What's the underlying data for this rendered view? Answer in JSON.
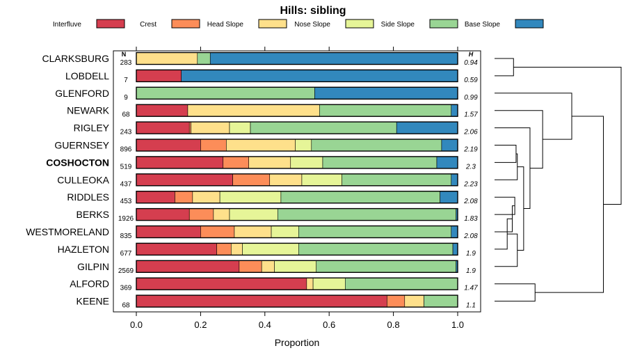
{
  "chart_data": {
    "type": "stacked-bar",
    "title": "Hills: sibling",
    "xlabel": "Proportion",
    "ylabel": "",
    "xlim": [
      0,
      1
    ],
    "x_ticks": [
      "0.0",
      "0.2",
      "0.4",
      "0.6",
      "0.8",
      "1.0"
    ],
    "n_header": "N",
    "h_header": "H",
    "legend": [
      {
        "name": "Interfluve",
        "color": "#D53E4F"
      },
      {
        "name": "Crest",
        "color": "#FC8D59"
      },
      {
        "name": "Head Slope",
        "color": "#FEE08B"
      },
      {
        "name": "Nose Slope",
        "color": "#E6F598"
      },
      {
        "name": "Side Slope",
        "color": "#99D594"
      },
      {
        "name": "Base Slope",
        "color": "#3288BD"
      }
    ],
    "highlight": "COSHOCTON",
    "rows": [
      {
        "name": "CLARKSBURG",
        "n": "283",
        "h": "0.94",
        "values": [
          0,
          0,
          0.19,
          0,
          0.04,
          0.77
        ]
      },
      {
        "name": "LOBDELL",
        "n": "7",
        "h": "0.59",
        "values": [
          0.14,
          0,
          0,
          0,
          0,
          0.86
        ]
      },
      {
        "name": "GLENFORD",
        "n": "9",
        "h": "0.99",
        "values": [
          0,
          0,
          0,
          0,
          0.555,
          0.445
        ]
      },
      {
        "name": "NEWARK",
        "n": "68",
        "h": "1.57",
        "values": [
          0.16,
          0,
          0.41,
          0,
          0.41,
          0.02
        ]
      },
      {
        "name": "RIGLEY",
        "n": "243",
        "h": "2.06",
        "values": [
          0.165,
          0.005,
          0.12,
          0.065,
          0.455,
          0.19
        ]
      },
      {
        "name": "GUERNSEY",
        "n": "896",
        "h": "2.19",
        "values": [
          0.2,
          0.08,
          0.215,
          0.05,
          0.405,
          0.05
        ]
      },
      {
        "name": "COSHOCTON",
        "n": "519",
        "h": "2.3",
        "values": [
          0.27,
          0.08,
          0.13,
          0.1,
          0.355,
          0.065
        ]
      },
      {
        "name": "CULLEOKA",
        "n": "437",
        "h": "2.23",
        "values": [
          0.3,
          0.115,
          0.1,
          0.125,
          0.34,
          0.02
        ]
      },
      {
        "name": "RIDDLES",
        "n": "453",
        "h": "2.08",
        "values": [
          0.12,
          0.055,
          0.085,
          0.19,
          0.495,
          0.055
        ]
      },
      {
        "name": "BERKS",
        "n": "1926",
        "h": "1.83",
        "values": [
          0.165,
          0.075,
          0.05,
          0.15,
          0.555,
          0.005
        ]
      },
      {
        "name": "WESTMORELAND",
        "n": "835",
        "h": "2.08",
        "values": [
          0.2,
          0.105,
          0.115,
          0.085,
          0.475,
          0.02
        ]
      },
      {
        "name": "HAZLETON",
        "n": "677",
        "h": "1.9",
        "values": [
          0.25,
          0.045,
          0.035,
          0.175,
          0.48,
          0.015
        ]
      },
      {
        "name": "GILPIN",
        "n": "2569",
        "h": "1.9",
        "values": [
          0.32,
          0.07,
          0.04,
          0.13,
          0.435,
          0.005
        ]
      },
      {
        "name": "ALFORD",
        "n": "369",
        "h": "1.47",
        "values": [
          0.53,
          0,
          0.02,
          0.1,
          0.35,
          0
        ]
      },
      {
        "name": "KEENE",
        "n": "68",
        "h": "1.1",
        "values": [
          0.78,
          0.055,
          0.06,
          0,
          0.105,
          0
        ]
      }
    ],
    "dendrogram": {
      "merges": [
        {
          "a": "CLARKSBURG",
          "b": "LOBDELL",
          "height": 0.15
        },
        {
          "a": "RIDDLES",
          "b": "BERKS",
          "height": 0.16
        },
        {
          "a": "GUERNSEY",
          "b": "COSHOCTON",
          "height": 0.17
        },
        {
          "a": "ALFORD",
          "b": "KEENE",
          "height": 0.32
        },
        {
          "a": "{GUERNSEY,COSHOCTON}",
          "b": "CULLEOKA",
          "height": 0.18
        },
        {
          "a": "{RIDDLES,BERKS}",
          "b": "WESTMORELAND",
          "height": 0.14
        },
        {
          "a": "{RIDDLES,BERKS,WESTMORELAND}",
          "b": "HAZLETON",
          "height": 0.1
        },
        {
          "a": "{RIDDLES,BERKS,WESTMORELAND,HAZLETON}",
          "b": "GILPIN",
          "height": 0.18
        },
        {
          "a": "{GUERNSEY,COSHOCTON,CULLEOKA}",
          "b": "{RIDDLES..GILPIN}",
          "height": 0.23
        },
        {
          "a": "RIGLEY",
          "b": "{GUERNSEY..GILPIN}",
          "height": 0.28
        },
        {
          "a": "NEWARK",
          "b": "{RIGLEY..GILPIN}",
          "height": 0.38
        },
        {
          "a": "GLENFORD",
          "b": "{NEWARK..GILPIN}",
          "height": 0.61
        },
        {
          "a": "{GLENFORD..GILPIN}",
          "b": "{ALFORD,KEENE}",
          "height": 0.86
        },
        {
          "a": "{CLARKSBURG,LOBDELL}",
          "b": "{GLENFORD..KEENE}",
          "height": 1.0
        }
      ]
    }
  }
}
